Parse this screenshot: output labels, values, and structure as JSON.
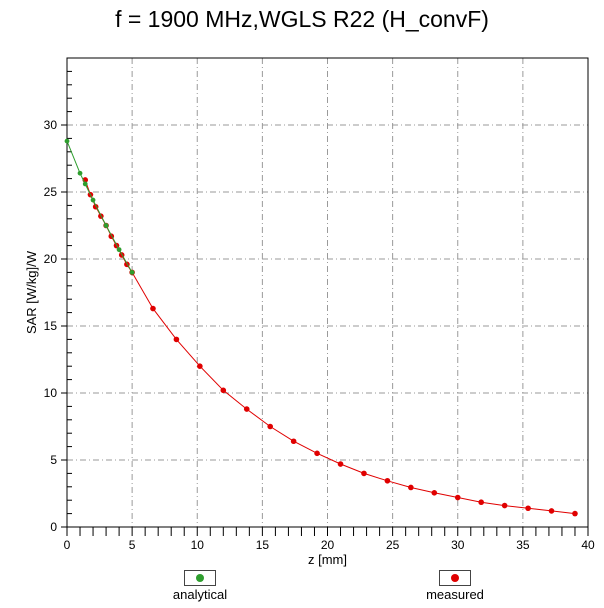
{
  "chart_data": {
    "type": "line",
    "title": "f = 1900 MHz,WGLS R22 (H_convF)",
    "xlabel": "z [mm]",
    "ylabel": "SAR [W/kg]/W",
    "xlim": [
      0,
      40
    ],
    "ylim": [
      0,
      35
    ],
    "xticks": [
      "0",
      "5",
      "10",
      "15",
      "20",
      "25",
      "30",
      "35",
      "40"
    ],
    "yticks": [
      "0",
      "5",
      "10",
      "15",
      "20",
      "25",
      "30"
    ],
    "grid": true,
    "legend_placement": "bottom",
    "series": [
      {
        "name": "analytical",
        "color": "#2e9e2e",
        "x": [
          0,
          1.0,
          1.4,
          2.0,
          3.0,
          4.0,
          5.0
        ],
        "y": [
          28.8,
          26.4,
          25.6,
          24.4,
          22.5,
          20.7,
          19.0
        ]
      },
      {
        "name": "measured",
        "color": "#e00000",
        "x": [
          1.4,
          1.8,
          2.2,
          2.6,
          3.0,
          3.4,
          3.8,
          4.2,
          4.6,
          5.0,
          6.6,
          8.4,
          10.2,
          12.0,
          13.8,
          15.6,
          17.4,
          19.2,
          21.0,
          22.8,
          24.6,
          26.4,
          28.2,
          30.0,
          31.8,
          33.6,
          35.4,
          37.2,
          39.0
        ],
        "y": [
          25.9,
          24.8,
          23.9,
          23.2,
          22.5,
          21.7,
          21.0,
          20.3,
          19.6,
          19.0,
          16.3,
          14.0,
          12.0,
          10.2,
          8.8,
          7.5,
          6.4,
          5.5,
          4.7,
          4.0,
          3.45,
          2.95,
          2.55,
          2.2,
          1.85,
          1.6,
          1.4,
          1.2,
          1.0
        ]
      }
    ]
  }
}
